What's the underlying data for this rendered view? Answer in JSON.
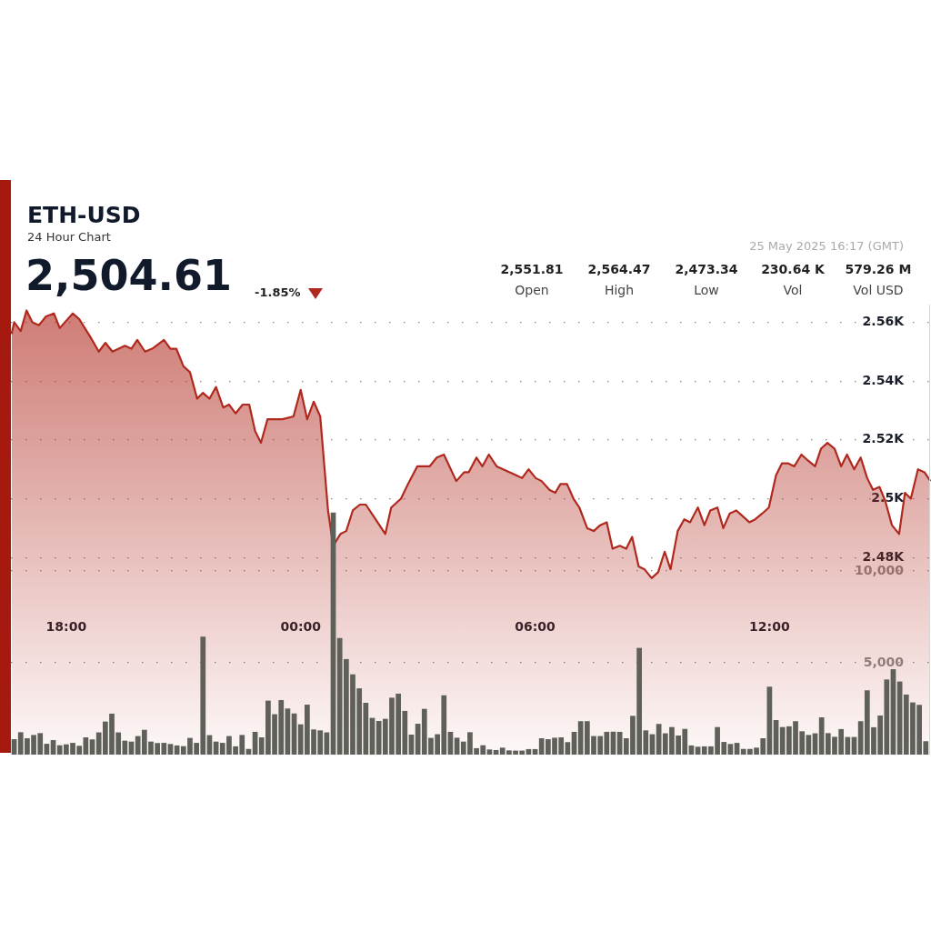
{
  "chart_data": {
    "type": "area",
    "title": "ETH-USD",
    "subtitle": "24 Hour Chart",
    "annotations": [
      "2,504.61",
      "-1.85%",
      "25 May 2025 16:17 (GMT)",
      "2,551.81",
      "Open",
      "2,564.47",
      "High",
      "2,473.34",
      "Low",
      "230.64 K",
      "Vol",
      "579.26 M",
      "Vol USD"
    ],
    "xlim": [
      "2025-05-24T16:35",
      "2025-05-25T16:08"
    ],
    "xticks": [
      {
        "value": "2025-05-24T18:00",
        "label": "18:00"
      },
      {
        "value": "2025-05-25T00:00",
        "label": "00:00"
      },
      {
        "value": "2025-05-25T06:00",
        "label": "06:00"
      },
      {
        "value": "2025-05-25T12:00",
        "label": "12:00"
      }
    ],
    "ylim": [
      2413,
      2566
    ],
    "yticks": [
      {
        "value": 2480,
        "label": "2.48K"
      },
      {
        "value": 2500,
        "label": "2.5K"
      },
      {
        "value": 2520,
        "label": "2.52K"
      },
      {
        "value": 2540,
        "label": "2.54K"
      },
      {
        "value": 2560,
        "label": "2.56K"
      }
    ],
    "y2lim": [
      0,
      24500
    ],
    "y2ticks": [
      {
        "value": 5000,
        "label": "5,000"
      },
      {
        "value": 10000,
        "label": "10,000"
      }
    ],
    "grid": "y",
    "series": [
      {
        "color": "#b0291e",
        "x": [
          "2025-05-24T16:36",
          "2025-05-24T16:40",
          "2025-05-24T16:50",
          "2025-05-24T16:59",
          "2025-05-24T17:08",
          "2025-05-24T17:18",
          "2025-05-24T17:29",
          "2025-05-24T17:41",
          "2025-05-24T17:50",
          "2025-05-24T18:10",
          "2025-05-24T18:20",
          "2025-05-24T18:37",
          "2025-05-24T18:50",
          "2025-05-24T19:00",
          "2025-05-24T19:11",
          "2025-05-24T19:30",
          "2025-05-24T19:40",
          "2025-05-24T19:49",
          "2025-05-24T20:01",
          "2025-05-24T20:12",
          "2025-05-24T20:30",
          "2025-05-24T20:40",
          "2025-05-24T20:49",
          "2025-05-24T21:00",
          "2025-05-24T21:10",
          "2025-05-24T21:21",
          "2025-05-24T21:30",
          "2025-05-24T21:40",
          "2025-05-24T21:50",
          "2025-05-24T22:01",
          "2025-05-24T22:10",
          "2025-05-24T22:20",
          "2025-05-24T22:31",
          "2025-05-24T22:41",
          "2025-05-24T22:50",
          "2025-05-24T22:59",
          "2025-05-24T23:09",
          "2025-05-24T23:32",
          "2025-05-24T23:49",
          "2025-05-25T00:00",
          "2025-05-25T00:10",
          "2025-05-25T00:20",
          "2025-05-25T00:30",
          "2025-05-25T00:42",
          "2025-05-25T00:50",
          "2025-05-25T01:01",
          "2025-05-25T01:10",
          "2025-05-25T01:20",
          "2025-05-25T01:31",
          "2025-05-25T01:40",
          "2025-05-25T01:52",
          "2025-05-25T02:10",
          "2025-05-25T02:19",
          "2025-05-25T02:34",
          "2025-05-25T02:45",
          "2025-05-25T02:59",
          "2025-05-25T03:18",
          "2025-05-25T03:29",
          "2025-05-25T03:40",
          "2025-05-25T03:59",
          "2025-05-25T04:11",
          "2025-05-25T04:18",
          "2025-05-25T04:30",
          "2025-05-25T04:39",
          "2025-05-25T04:49",
          "2025-05-25T05:01",
          "2025-05-25T05:11",
          "2025-05-25T05:21",
          "2025-05-25T05:31",
          "2025-05-25T05:40",
          "2025-05-25T05:50",
          "2025-05-25T06:01",
          "2025-05-25T06:10",
          "2025-05-25T06:22",
          "2025-05-25T06:31",
          "2025-05-25T06:39",
          "2025-05-25T06:49",
          "2025-05-25T06:59",
          "2025-05-25T07:08",
          "2025-05-25T07:20",
          "2025-05-25T07:30",
          "2025-05-25T07:40",
          "2025-05-25T07:50",
          "2025-05-25T07:59",
          "2025-05-25T08:10",
          "2025-05-25T08:20",
          "2025-05-25T08:29",
          "2025-05-25T08:39",
          "2025-05-25T08:48",
          "2025-05-25T08:59",
          "2025-05-25T09:09",
          "2025-05-25T09:19",
          "2025-05-25T09:28",
          "2025-05-25T09:39",
          "2025-05-25T09:49",
          "2025-05-25T09:58",
          "2025-05-25T10:10",
          "2025-05-25T10:20",
          "2025-05-25T10:29",
          "2025-05-25T10:40",
          "2025-05-25T10:49",
          "2025-05-25T10:59",
          "2025-05-25T11:09",
          "2025-05-25T11:19",
          "2025-05-25T11:29",
          "2025-05-25T11:38",
          "2025-05-25T11:49",
          "2025-05-25T11:59",
          "2025-05-25T12:10",
          "2025-05-25T12:19",
          "2025-05-25T12:29",
          "2025-05-25T12:38",
          "2025-05-25T12:49",
          "2025-05-25T12:59",
          "2025-05-25T13:10",
          "2025-05-25T13:19",
          "2025-05-25T13:29",
          "2025-05-25T13:40",
          "2025-05-25T13:50",
          "2025-05-25T13:59",
          "2025-05-25T14:10",
          "2025-05-25T14:20",
          "2025-05-25T14:30",
          "2025-05-25T14:39",
          "2025-05-25T14:49",
          "2025-05-25T14:58",
          "2025-05-25T15:08",
          "2025-05-25T15:19",
          "2025-05-25T15:28",
          "2025-05-25T15:37",
          "2025-05-25T15:48",
          "2025-05-25T15:58",
          "2025-05-25T16:07"
        ],
        "values": [
          2556,
          2560,
          2557,
          2564,
          2560,
          2559,
          2562,
          2563,
          2558,
          2563,
          2561,
          2555,
          2550,
          2553,
          2550,
          2552,
          2551,
          2554,
          2550,
          2551,
          2554,
          2551,
          2551,
          2545,
          2543,
          2534,
          2536,
          2534,
          2538,
          2531,
          2532,
          2529,
          2532,
          2532,
          2523,
          2519,
          2527,
          2527,
          2528,
          2537,
          2527,
          2533,
          2528,
          2496,
          2484,
          2488,
          2489,
          2496,
          2498,
          2498,
          2494,
          2488,
          2497,
          2500,
          2505,
          2511,
          2511,
          2514,
          2515,
          2506,
          2509,
          2509,
          2514,
          2511,
          2515,
          2511,
          2510,
          2509,
          2508,
          2507,
          2510,
          2507,
          2506,
          2503,
          2502,
          2505,
          2505,
          2500,
          2497,
          2490,
          2489,
          2491,
          2492,
          2483,
          2484,
          2483,
          2487,
          2477,
          2476,
          2473,
          2475,
          2482,
          2476,
          2489,
          2493,
          2492,
          2497,
          2491,
          2496,
          2497,
          2490,
          2495,
          2496,
          2494,
          2492,
          2493,
          2495,
          2497,
          2508,
          2512,
          2512,
          2511,
          2515,
          2513,
          2511,
          2517,
          2519,
          2517,
          2511,
          2515,
          2510,
          2514,
          2507,
          2503,
          2504,
          2499,
          2491,
          2488,
          2502,
          2500,
          2510,
          2509,
          2506
        ]
      },
      {
        "type": "bar",
        "axis": "y2",
        "color": "#5f605a",
        "x": [
          "2025-05-24T16:40",
          "2025-05-24T16:50",
          "2025-05-24T17:00",
          "2025-05-24T17:10",
          "2025-05-24T17:20",
          "2025-05-24T17:30",
          "2025-05-24T17:40",
          "2025-05-24T17:50",
          "2025-05-24T18:00",
          "2025-05-24T18:10",
          "2025-05-24T18:20",
          "2025-05-24T18:30",
          "2025-05-24T18:40",
          "2025-05-24T18:50",
          "2025-05-24T19:00",
          "2025-05-24T19:10",
          "2025-05-24T19:20",
          "2025-05-24T19:30",
          "2025-05-24T19:40",
          "2025-05-24T19:50",
          "2025-05-24T20:00",
          "2025-05-24T20:10",
          "2025-05-24T20:20",
          "2025-05-24T20:30",
          "2025-05-24T20:40",
          "2025-05-24T20:50",
          "2025-05-24T21:00",
          "2025-05-24T21:10",
          "2025-05-24T21:20",
          "2025-05-24T21:30",
          "2025-05-24T21:40",
          "2025-05-24T21:50",
          "2025-05-24T22:00",
          "2025-05-24T22:10",
          "2025-05-24T22:20",
          "2025-05-24T22:30",
          "2025-05-24T22:40",
          "2025-05-24T22:50",
          "2025-05-24T23:00",
          "2025-05-24T23:10",
          "2025-05-24T23:20",
          "2025-05-24T23:30",
          "2025-05-24T23:40",
          "2025-05-24T23:50",
          "2025-05-25T00:00",
          "2025-05-25T00:10",
          "2025-05-25T00:20",
          "2025-05-25T00:30",
          "2025-05-25T00:40",
          "2025-05-25T00:50",
          "2025-05-25T01:00",
          "2025-05-25T01:10",
          "2025-05-25T01:20",
          "2025-05-25T01:30",
          "2025-05-25T01:40",
          "2025-05-25T01:50",
          "2025-05-25T02:00",
          "2025-05-25T02:10",
          "2025-05-25T02:20",
          "2025-05-25T02:30",
          "2025-05-25T02:40",
          "2025-05-25T02:50",
          "2025-05-25T03:00",
          "2025-05-25T03:10",
          "2025-05-25T03:20",
          "2025-05-25T03:30",
          "2025-05-25T03:40",
          "2025-05-25T03:50",
          "2025-05-25T04:00",
          "2025-05-25T04:10",
          "2025-05-25T04:20",
          "2025-05-25T04:30",
          "2025-05-25T04:40",
          "2025-05-25T04:50",
          "2025-05-25T05:00",
          "2025-05-25T05:10",
          "2025-05-25T05:20",
          "2025-05-25T05:30",
          "2025-05-25T05:40",
          "2025-05-25T05:50",
          "2025-05-25T06:00",
          "2025-05-25T06:10",
          "2025-05-25T06:20",
          "2025-05-25T06:30",
          "2025-05-25T06:40",
          "2025-05-25T06:50",
          "2025-05-25T07:00",
          "2025-05-25T07:10",
          "2025-05-25T07:20",
          "2025-05-25T07:30",
          "2025-05-25T07:40",
          "2025-05-25T07:50",
          "2025-05-25T08:00",
          "2025-05-25T08:10",
          "2025-05-25T08:20",
          "2025-05-25T08:30",
          "2025-05-25T08:40",
          "2025-05-25T08:50",
          "2025-05-25T09:00",
          "2025-05-25T09:10",
          "2025-05-25T09:20",
          "2025-05-25T09:30",
          "2025-05-25T09:40",
          "2025-05-25T09:50",
          "2025-05-25T10:00",
          "2025-05-25T10:10",
          "2025-05-25T10:20",
          "2025-05-25T10:30",
          "2025-05-25T10:40",
          "2025-05-25T10:50",
          "2025-05-25T11:00",
          "2025-05-25T11:10",
          "2025-05-25T11:20",
          "2025-05-25T11:30",
          "2025-05-25T11:40",
          "2025-05-25T11:50",
          "2025-05-25T12:00",
          "2025-05-25T12:10",
          "2025-05-25T12:20",
          "2025-05-25T12:30",
          "2025-05-25T12:40",
          "2025-05-25T12:50",
          "2025-05-25T13:00",
          "2025-05-25T13:10",
          "2025-05-25T13:20",
          "2025-05-25T13:30",
          "2025-05-25T13:40",
          "2025-05-25T13:50",
          "2025-05-25T14:00",
          "2025-05-25T14:10",
          "2025-05-25T14:20",
          "2025-05-25T14:30",
          "2025-05-25T14:40",
          "2025-05-25T14:50",
          "2025-05-25T15:00",
          "2025-05-25T15:10",
          "2025-05-25T15:20",
          "2025-05-25T15:30",
          "2025-05-25T15:40",
          "2025-05-25T15:50",
          "2025-05-25T16:00"
        ],
        "values": [
          840,
          1220,
          890,
          1070,
          1170,
          590,
          790,
          510,
          560,
          640,
          480,
          940,
          830,
          1210,
          1800,
          2230,
          1210,
          760,
          710,
          1010,
          1350,
          710,
          630,
          640,
          580,
          500,
          460,
          910,
          640,
          6420,
          1060,
          710,
          640,
          1010,
          450,
          1070,
          310,
          1240,
          940,
          2940,
          2200,
          2970,
          2510,
          2240,
          1650,
          2720,
          1370,
          1320,
          1210,
          13180,
          6350,
          5200,
          4370,
          3610,
          2820,
          2000,
          1830,
          1950,
          3100,
          3320,
          2380,
          1090,
          1680,
          2490,
          910,
          1110,
          3230,
          1240,
          920,
          710,
          1220,
          350,
          510,
          280,
          250,
          380,
          230,
          220,
          220,
          300,
          300,
          890,
          840,
          920,
          940,
          680,
          1240,
          1820,
          1820,
          1010,
          1010,
          1240,
          1250,
          1240,
          890,
          2110,
          5810,
          1320,
          1110,
          1670,
          1160,
          1500,
          1040,
          1400,
          500,
          430,
          450,
          450,
          1500,
          690,
          580,
          640,
          310,
          310,
          380,
          890,
          3700,
          1880,
          1500,
          1540,
          1820,
          1270,
          1070,
          1160,
          2030,
          1170,
          970,
          1390,
          960,
          960,
          1820,
          3500,
          1490,
          2130,
          4090,
          4650,
          3980,
          3270,
          2840,
          2710,
          730
        ]
      }
    ]
  }
}
